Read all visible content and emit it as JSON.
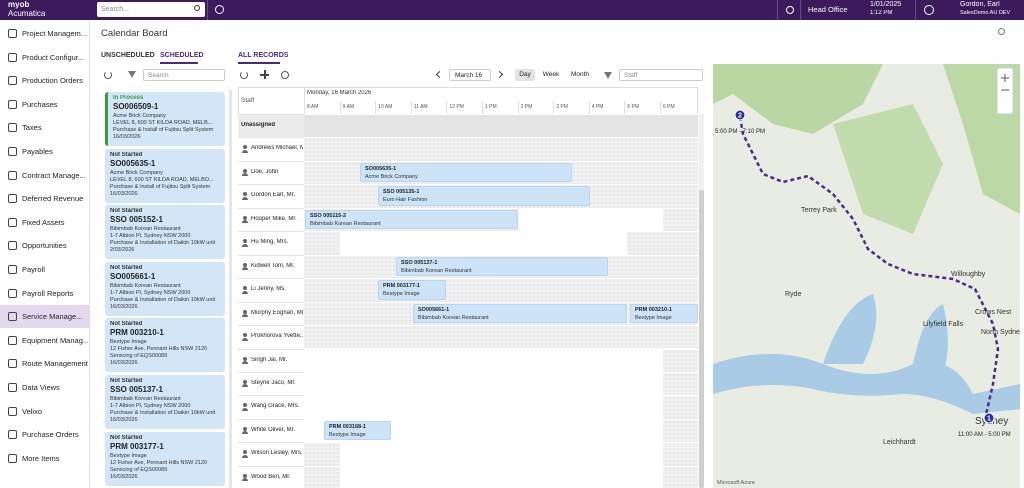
{
  "topbar": {
    "logo_line1": "myob",
    "logo_line2": "Acumatica",
    "search_placeholder": "Search...",
    "branch": "Head Office",
    "date": "1/01/2025",
    "time": "1:12 PM",
    "user": "Gordon, Earl",
    "tenant": "SalesDemo AU DEV"
  },
  "sidebar": {
    "items": [
      "Project Managem...",
      "Product Configur...",
      "Production Orders",
      "Purchases",
      "Taxes",
      "Payables",
      "Contract Manage...",
      "Deferred Revenue",
      "Fixed Assets",
      "Opportunities",
      "Payroll",
      "Payroll Reports",
      "Service Manage...",
      "Equipment Manag...",
      "Route Management",
      "Data Views",
      "Velixo",
      "Purchase Orders",
      "More Items"
    ],
    "selected_index": 12
  },
  "page": {
    "title": "Calendar Board",
    "tabs": [
      "UNSCHEDULED",
      "SCHEDULED"
    ],
    "active_tab": 1,
    "all_records": "ALL RECORDS"
  },
  "list": {
    "search_placeholder": "Search",
    "cards": [
      {
        "status": "In Process",
        "status_color": "#3a9a3e",
        "id": "SO006509-1",
        "customer": "Acme Brick Company",
        "address": "LEVEL 8, 600 ST KILDA ROAD, MELB...",
        "description": "Purchase & Install of Fujitsu Split System",
        "date": "16/03/2026"
      },
      {
        "status": "Not Started",
        "status_color": "#333333",
        "id": "SO005635-1",
        "customer": "Acme Brick Company",
        "address": "LEVEL 8, 600 ST KILDA ROAD, MELBO...",
        "description": "Purchase & Install of Fujitsu Split System",
        "date": "16/03/2026"
      },
      {
        "status": "Not Started",
        "status_color": "#333333",
        "id": "SSO 005152-1",
        "customer": "Bibimbab Korean Restaurant",
        "address": "1-7 Albion Pl, Sydney NSW 2000",
        "description": "Purchase & Installation of Daikin 10kW unit",
        "date": "2/03/2026"
      },
      {
        "status": "Not Started",
        "status_color": "#333333",
        "id": "SO005661-1",
        "customer": "Bibimbab Korean Restaurant",
        "address": "1-7 Albion Pl, Sydney NSW 2000",
        "description": "Purchase & Installation of Daikin 10kW unit",
        "date": "16/03/2026"
      },
      {
        "status": "Not Started",
        "status_color": "#333333",
        "id": "PRM 003210-1",
        "customer": "Bestype Image",
        "address": "12 Fisher Ave, Pennant Hills NSW 2120",
        "description": "Servicing of EQS00089",
        "date": "16/03/2026"
      },
      {
        "status": "Not Started",
        "status_color": "#333333",
        "id": "SSO 005137-1",
        "customer": "Bibimbab Korean Restaurant",
        "address": "1-7 Albion Pl, Sydney NSW 2000",
        "description": "Purchase & Installation of Daikin 10kW unit",
        "date": "16/03/2026"
      },
      {
        "status": "Not Started",
        "status_color": "#333333",
        "id": "PRM 003177-1",
        "customer": "Bestype Image",
        "address": "12 Fisher Ave, Pennant Hills NSW 2120",
        "description": "Servicing of EQS00089",
        "date": "16/03/2026"
      }
    ]
  },
  "calendar": {
    "date_button": "March 16",
    "views": [
      "Day",
      "Week",
      "Month"
    ],
    "active_view": 0,
    "staff_filter": "Staff",
    "staff_header": "Staff",
    "day_label": "Monday, 16 March 2026",
    "hours": [
      "8 AM",
      "9 AM",
      "10 AM",
      "11 AM",
      "12 PM",
      "1 PM",
      "2 PM",
      "3 PM",
      "4 PM",
      "5 PM",
      "6 PM"
    ],
    "rows": [
      {
        "name": "Unassigned",
        "events": []
      },
      {
        "name": "Andrews Michael, M...",
        "events": []
      },
      {
        "name": "Doe, John",
        "events": [
          {
            "id": "SO005635-1",
            "customer": "Acme Brick Company"
          }
        ]
      },
      {
        "name": "Gordon Earl, Mr.",
        "events": [
          {
            "id": "SSO 005135-1",
            "customer": "Euro Hair Fashion"
          }
        ]
      },
      {
        "name": "Hooper Mike, Mr.",
        "events": [
          {
            "id": "SSO 005115-2",
            "customer": "Bibimbab Korean Restaurant"
          }
        ]
      },
      {
        "name": "Hu Ming, Mrs.",
        "events": []
      },
      {
        "name": "Kidwell Tom, Mr.",
        "events": [
          {
            "id": "SSO 005137-1",
            "customer": "Bibimbab Korean Restaurant"
          }
        ]
      },
      {
        "name": "Li Jenny, Ms.",
        "events": [
          {
            "id": "PRM 003177-1",
            "customer": "Bestype Image"
          }
        ]
      },
      {
        "name": "Murphy Eoghan, Mr.",
        "events": [
          {
            "id": "SO005661-1",
            "customer": "Bibimbab Korean Restaurant"
          },
          {
            "id": "PRM 003210-1",
            "customer": "Bestype Image"
          }
        ]
      },
      {
        "name": "Prokhorova Yvette,...",
        "events": []
      },
      {
        "name": "Singh Jai, Mr.",
        "events": []
      },
      {
        "name": "Steyne Jaco, Mr.",
        "events": []
      },
      {
        "name": "Wang Grace, Mrs.",
        "events": []
      },
      {
        "name": "White Oliver, Mr.",
        "events": [
          {
            "id": "PRM 003168-1",
            "customer": "Bestype Image"
          }
        ]
      },
      {
        "name": "Wilson Lesley, Mrs.",
        "events": []
      },
      {
        "name": "Wood Ben, Mr.",
        "events": []
      }
    ]
  },
  "map": {
    "labels": [
      "Ryde",
      "Willoughby",
      "Crows Nest",
      "North Sydney",
      "Sydney",
      "Leichhardt",
      "Terrey Park",
      "Lilyfield Falls"
    ],
    "markers": [
      {
        "number": "2",
        "window": "5:00 PM - 7:10 PM"
      },
      {
        "number": "1",
        "window": "11:00 AM - 5:00 PM"
      }
    ],
    "attribution": "Microsoft Azure"
  }
}
